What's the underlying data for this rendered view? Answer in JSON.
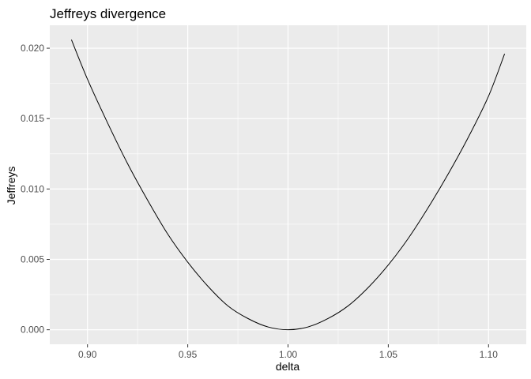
{
  "chart_data": {
    "type": "line",
    "title": "Jeffreys divergence",
    "xlabel": "delta",
    "ylabel": "Jeffreys",
    "xlim": [
      0.8812,
      1.1188
    ],
    "ylim": [
      -0.00103,
      0.02163
    ],
    "x_ticks": [
      0.9,
      0.95,
      1.0,
      1.05,
      1.1
    ],
    "x_tick_labels": [
      "0.90",
      "0.95",
      "1.00",
      "1.05",
      "1.10"
    ],
    "y_ticks": [
      0.0,
      0.005,
      0.01,
      0.015,
      0.02
    ],
    "y_tick_labels": [
      "0.000",
      "0.005",
      "0.010",
      "0.015",
      "0.020"
    ],
    "grid": true,
    "line_color": "#000000",
    "panel_background": "#ebebeb",
    "grid_color": "#ffffff",
    "series": [
      {
        "x": [
          0.892,
          0.9,
          0.91,
          0.92,
          0.93,
          0.94,
          0.95,
          0.96,
          0.97,
          0.98,
          0.99,
          1.0,
          1.01,
          1.02,
          1.03,
          1.04,
          1.05,
          1.06,
          1.07,
          1.08,
          1.09,
          1.1,
          1.108
        ],
        "y": [
          0.0206,
          0.0178,
          0.0147,
          0.0118,
          0.0092,
          0.0068,
          0.0048,
          0.0031,
          0.0017,
          0.0008,
          0.0002,
          0.0,
          0.0002,
          0.0008,
          0.0017,
          0.003,
          0.0046,
          0.0065,
          0.0087,
          0.0111,
          0.0137,
          0.0166,
          0.0196
        ]
      }
    ]
  }
}
